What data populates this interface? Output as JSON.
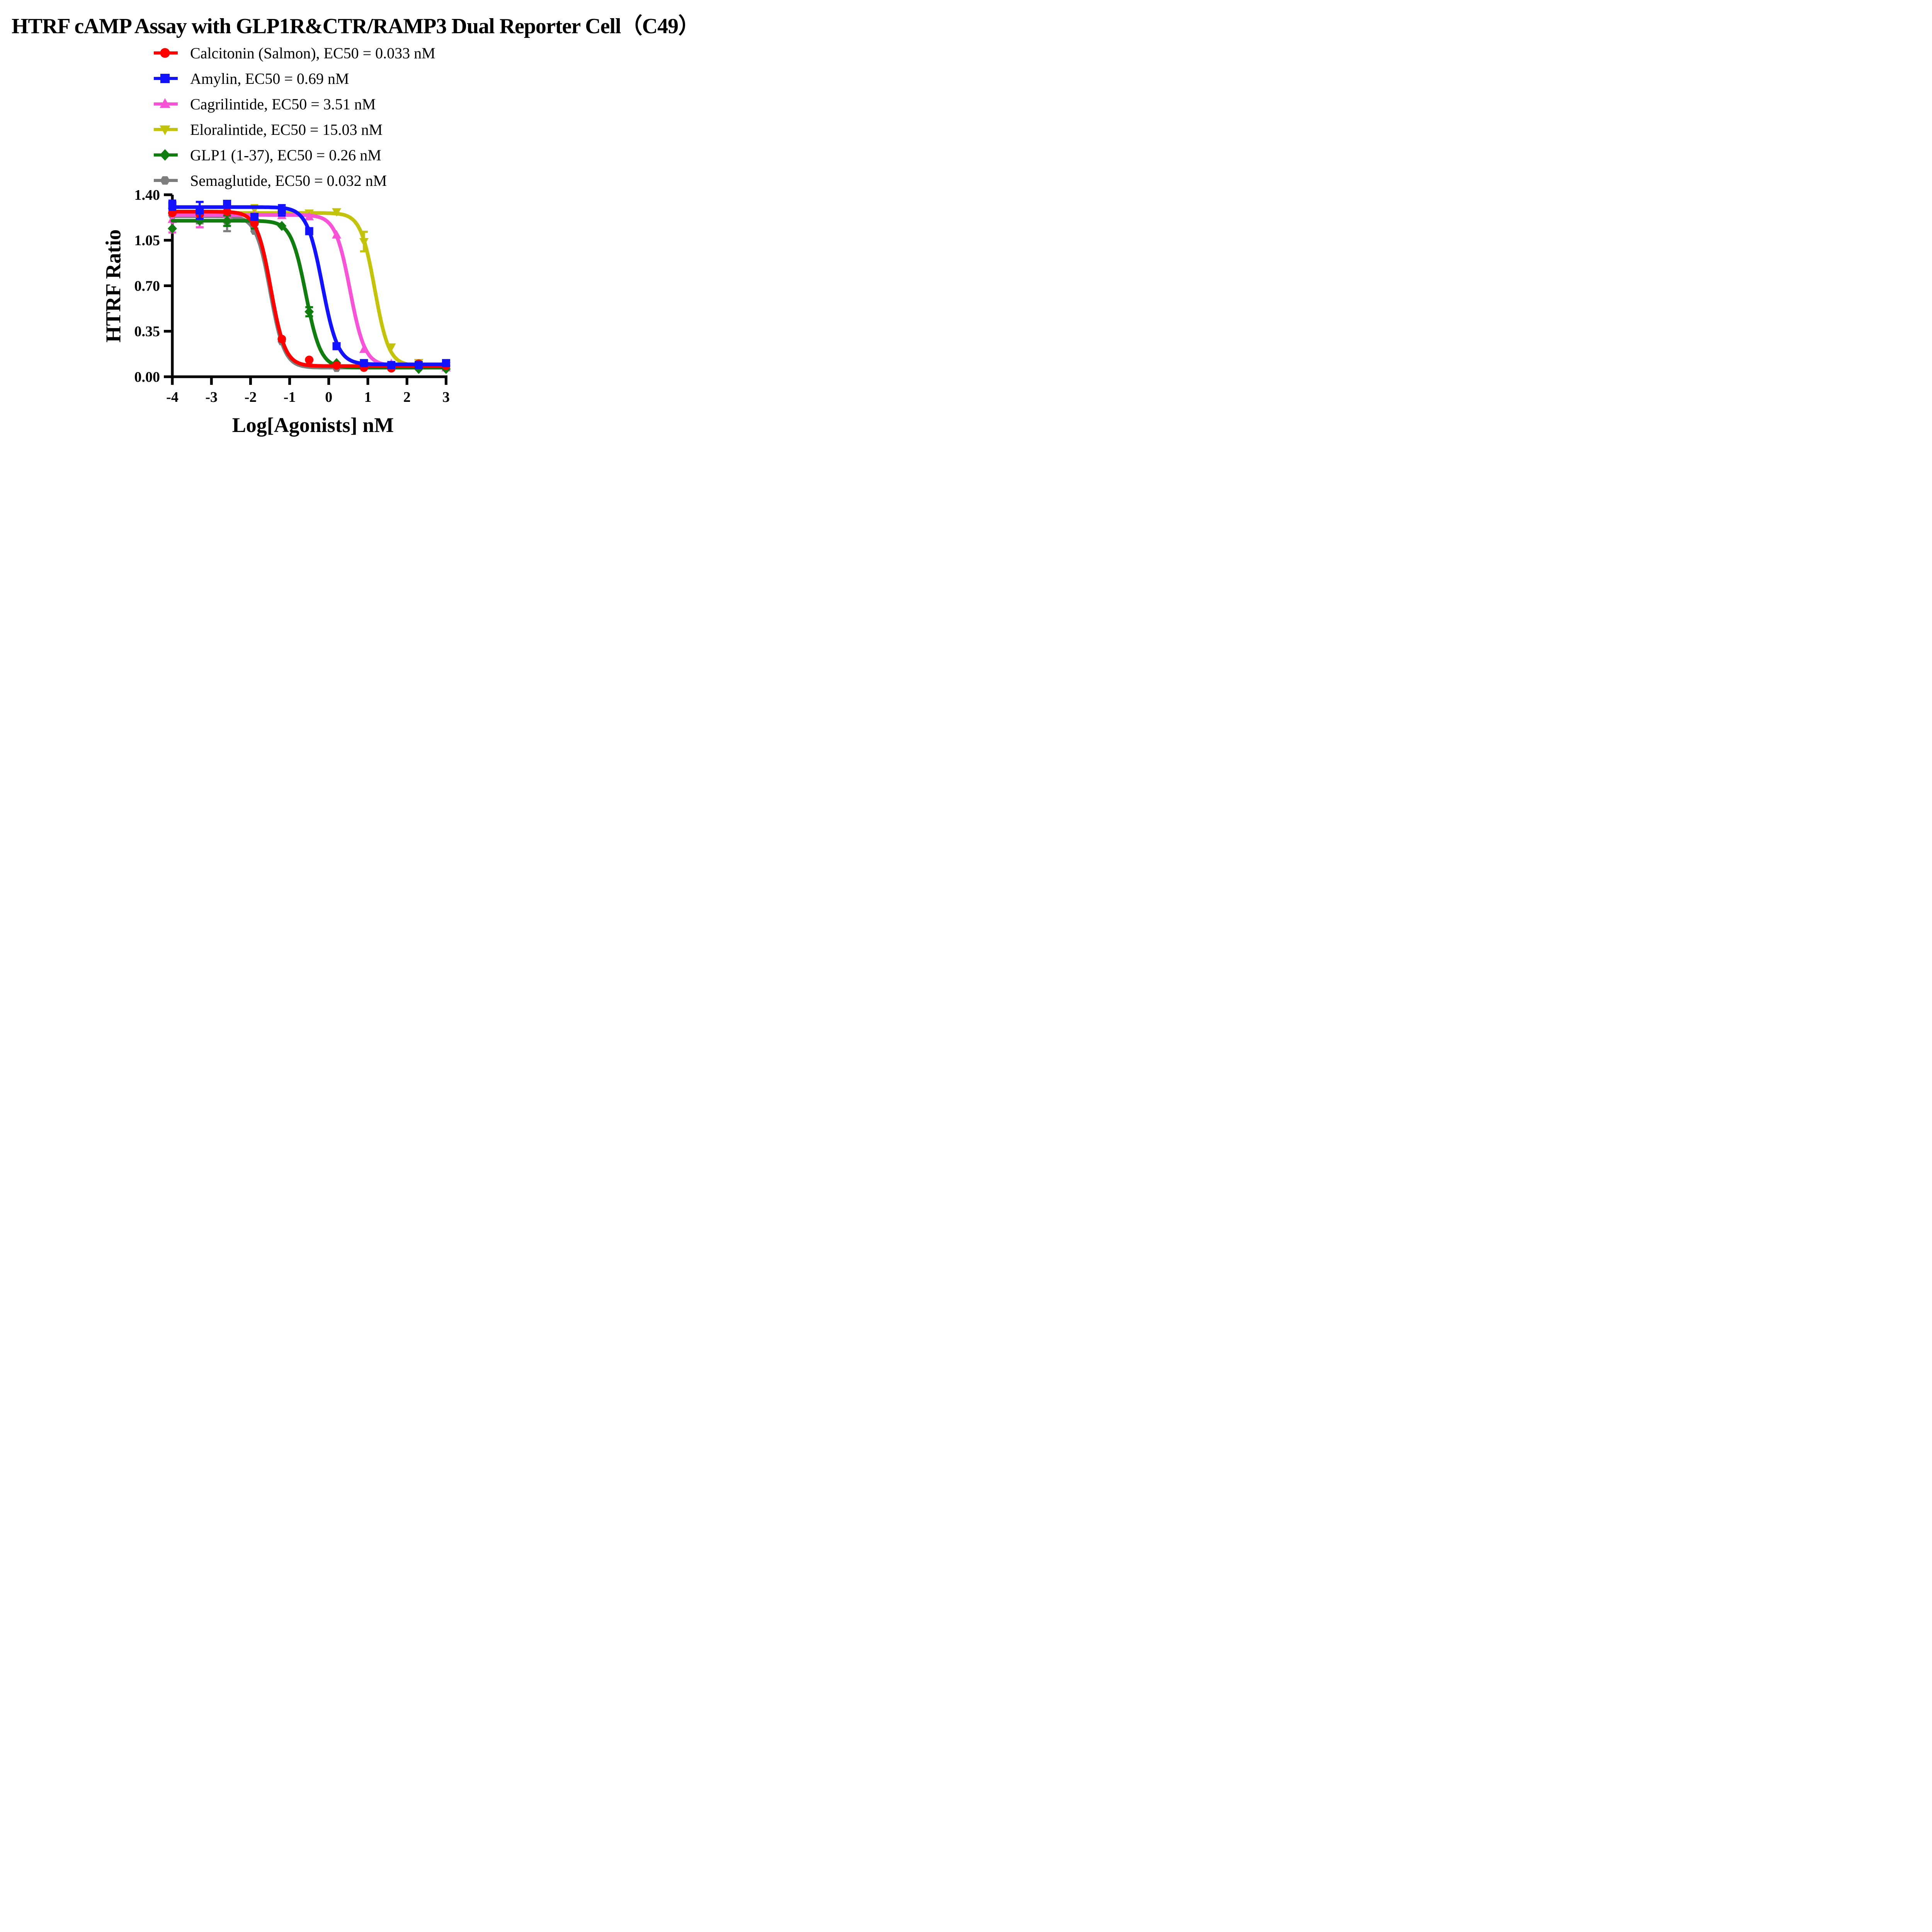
{
  "chart_data": {
    "type": "line",
    "title": "HTRF cAMP Assay with GLP1R&CTR/RAMP3 Dual Reporter Cell（C49）",
    "xlabel": "Log[Agonists] nM",
    "ylabel": "HTRF Ratio",
    "xlim": [
      -4,
      3
    ],
    "ylim": [
      0,
      1.4
    ],
    "grid": false,
    "legend_position": "top-center",
    "x_tick_labels": [
      "-4",
      "-3",
      "-2",
      "-1",
      "0",
      "1",
      "2",
      "3"
    ],
    "x_tick_values": [
      -4,
      -3,
      -2,
      -1,
      0,
      1,
      2,
      3
    ],
    "y_tick_labels": [
      "1.40",
      "1.05",
      "0.70",
      "0.35",
      "0.00"
    ],
    "y_tick_values": [
      1.4,
      1.05,
      0.7,
      0.35,
      0.0
    ],
    "x": [
      -4,
      -3.3,
      -2.6,
      -1.9,
      -1.2,
      -0.5,
      0.2,
      0.9,
      1.6,
      2.3,
      3
    ],
    "draw_order": [
      5,
      3,
      2,
      4,
      0,
      1
    ],
    "series": [
      {
        "name": "Calcitonin (Salmon)",
        "legend_label": "Calcitonin (Salmon), EC50 = 0.033 nM",
        "ec50_nM": 0.033,
        "color": "#FF0000",
        "marker": "circle",
        "curve": {
          "top": 1.27,
          "bottom": 0.082,
          "log_ec50": -1.48,
          "hill": 2.4
        },
        "values": [
          1.26,
          1.25,
          1.27,
          1.18,
          0.29,
          0.13,
          0.087,
          0.07,
          0.065,
          0.1,
          0.085
        ],
        "err": [
          0,
          0,
          0,
          0,
          0,
          0,
          0,
          0,
          0,
          0,
          0
        ]
      },
      {
        "name": "Amylin",
        "legend_label": "Amylin, EC50 = 0.69 nM",
        "ec50_nM": 0.69,
        "color": "#1212FF",
        "marker": "square",
        "curve": {
          "top": 1.305,
          "bottom": 0.095,
          "log_ec50": -0.161,
          "hill": 2.2
        },
        "values": [
          1.32,
          1.28,
          1.33,
          1.23,
          1.28,
          1.12,
          0.235,
          0.105,
          0.09,
          0.09,
          0.105
        ],
        "err": [
          0.035,
          0.065,
          0,
          0,
          0.04,
          0,
          0,
          0,
          0,
          0,
          0
        ]
      },
      {
        "name": "Cagrilintide",
        "legend_label": "Cagrilintide, EC50 = 3.51 nM",
        "ec50_nM": 3.51,
        "color": "#F653D6",
        "marker": "triangle-up",
        "curve": {
          "top": 1.245,
          "bottom": 0.085,
          "log_ec50": 0.545,
          "hill": 2.3
        },
        "values": [
          1.21,
          1.23,
          1.25,
          1.24,
          1.24,
          1.23,
          1.09,
          0.21,
          0.1,
          0.085,
          0.068
        ],
        "err": [
          0.1,
          0.08,
          0,
          0,
          0,
          0,
          0,
          0,
          0,
          0,
          0
        ]
      },
      {
        "name": "Eloralintide",
        "legend_label": "Eloralintide, EC50 = 15.03 nM",
        "ec50_nM": 15.03,
        "color": "#C3C30E",
        "marker": "triangle-down",
        "curve": {
          "top": 1.26,
          "bottom": 0.085,
          "log_ec50": 1.177,
          "hill": 2.4
        },
        "values": [
          1.27,
          1.24,
          1.28,
          1.29,
          1.25,
          1.26,
          1.27,
          1.04,
          0.23,
          0.11,
          0.085
        ],
        "err": [
          0,
          0,
          0,
          0.03,
          0,
          0,
          0,
          0.075,
          0,
          0,
          0
        ]
      },
      {
        "name": "GLP1 (1-37)",
        "legend_label": "GLP1 (1-37), EC50 = 0.26 nM",
        "ec50_nM": 0.26,
        "color": "#117D11",
        "marker": "diamond",
        "curve": {
          "top": 1.2,
          "bottom": 0.07,
          "log_ec50": -0.585,
          "hill": 2.3
        },
        "values": [
          1.14,
          1.2,
          1.2,
          1.19,
          1.16,
          0.5,
          0.105,
          0.09,
          0.08,
          0.06,
          0.06
        ],
        "err": [
          0,
          0,
          0.04,
          0.05,
          0,
          0.035,
          0,
          0,
          0,
          0,
          0
        ]
      },
      {
        "name": "Semaglutide",
        "legend_label": "Semaglutide, EC50 = 0.032 nM",
        "ec50_nM": 0.032,
        "color": "#7E7E7E",
        "marker": "hexagon",
        "curve": {
          "top": 1.235,
          "bottom": 0.07,
          "log_ec50": -1.495,
          "hill": 2.4
        },
        "values": [
          1.24,
          1.22,
          1.19,
          1.12,
          0.27,
          0.09,
          0.065,
          0.07,
          0.065,
          0.085,
          0.07
        ],
        "err": [
          0,
          0.04,
          0.07,
          0,
          0,
          0,
          0,
          0,
          0,
          0,
          0
        ]
      }
    ]
  }
}
